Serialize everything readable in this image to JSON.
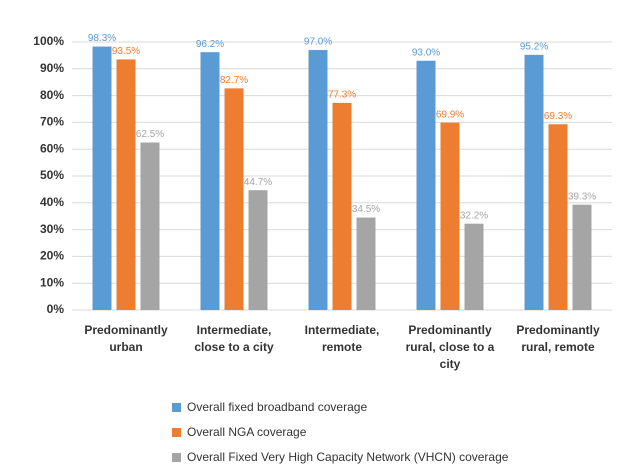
{
  "chart_data": {
    "type": "bar",
    "categories": [
      "Predominantly urban",
      "Intermediate, close to a city",
      "Intermediate, remote",
      "Predominantly rural, close to a city",
      "Predominantly rural, remote"
    ],
    "series": [
      {
        "name": "Overall fixed broadband coverage",
        "color": "#5b9bd5",
        "values": [
          98.3,
          96.2,
          97.0,
          93.0,
          95.2
        ],
        "value_labels": [
          "98.3%",
          "96.2%",
          "97.0%",
          "93.0%",
          "95.2%"
        ]
      },
      {
        "name": "Overall NGA coverage",
        "color": "#ed7d31",
        "values": [
          93.5,
          82.7,
          77.3,
          69.9,
          69.3
        ],
        "value_labels": [
          "93.5%",
          "82.7%",
          "77.3%",
          "69.9%",
          "69.3%"
        ]
      },
      {
        "name": "Overall Fixed Very High Capacity Network (VHCN) coverage",
        "color": "#a5a5a5",
        "values": [
          62.5,
          44.7,
          34.5,
          32.2,
          39.3
        ],
        "value_labels": [
          "62.5%",
          "44.7%",
          "34.5%",
          "32.2%",
          "39.3%"
        ]
      }
    ],
    "ylim": [
      0,
      100
    ],
    "yticks": [
      {
        "value": 0,
        "label": "0%"
      },
      {
        "value": 10,
        "label": "10%"
      },
      {
        "value": 20,
        "label": "20%"
      },
      {
        "value": 30,
        "label": "30%"
      },
      {
        "value": 40,
        "label": "40%"
      },
      {
        "value": 50,
        "label": "50%"
      },
      {
        "value": 60,
        "label": "60%"
      },
      {
        "value": 70,
        "label": "70%"
      },
      {
        "value": 80,
        "label": "80%"
      },
      {
        "value": 90,
        "label": "90%"
      },
      {
        "value": 100,
        "label": "100%"
      }
    ],
    "grid": true
  }
}
